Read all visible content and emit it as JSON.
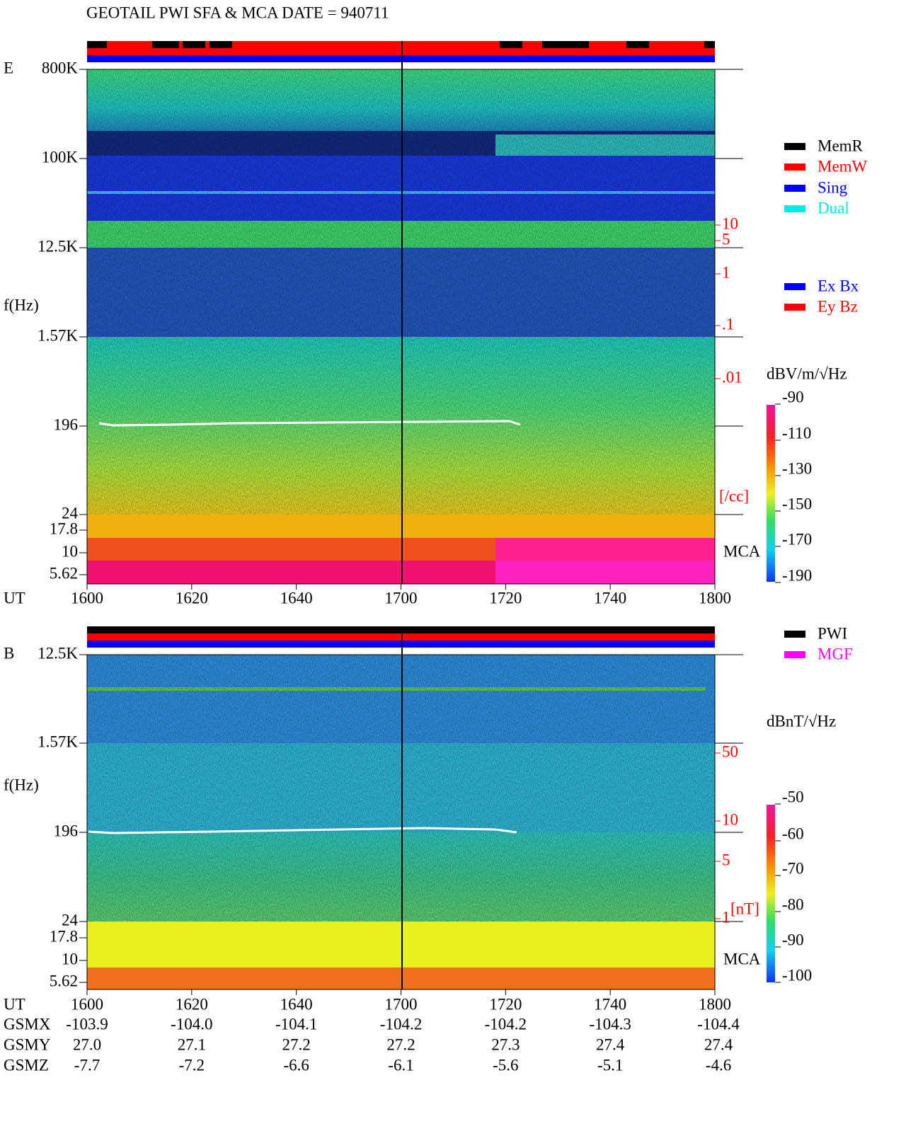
{
  "title": "GEOTAIL  PWI SFA & MCA   DATE = 940711",
  "panels": [
    {
      "label": "E",
      "y_axis_label": "f(Hz)",
      "x_axis_label": "UT",
      "band_label": "MCA",
      "y_ticks": [
        "800K",
        "100K",
        "12.5K",
        "1.57K",
        "196",
        "24",
        "17.8",
        "10",
        "5.62"
      ],
      "x_ticks": [
        "1600",
        "1620",
        "1640",
        "1700",
        "1720",
        "1740",
        "1800"
      ],
      "right_scale": {
        "ticks": [
          "10",
          "5",
          "1",
          ".1",
          ".01"
        ],
        "unit": "[/cc]"
      },
      "colorbar": {
        "unit": "dBV/m/√Hz",
        "ticks": [
          "-90",
          "-110",
          "-130",
          "-150",
          "-170",
          "-190"
        ]
      },
      "legend": [
        {
          "name": "MemR",
          "color": "#000000"
        },
        {
          "name": "MemW",
          "color": "#ff0000"
        },
        {
          "name": "Sing",
          "color": "#0000ff"
        },
        {
          "name": "Dual",
          "color": "#00e8f0"
        },
        {
          "name": "Ex Bx",
          "color": "#0000ff"
        },
        {
          "name": "Ey Bz",
          "color": "#ff0000"
        }
      ]
    },
    {
      "label": "B",
      "y_axis_label": "f(Hz)",
      "x_axis_label": "UT",
      "band_label": "MCA",
      "y_ticks": [
        "12.5K",
        "1.57K",
        "196",
        "24",
        "17.8",
        "10",
        "5.62"
      ],
      "x_ticks": [
        "1600",
        "1620",
        "1640",
        "1700",
        "1720",
        "1740",
        "1800"
      ],
      "right_scale": {
        "ticks": [
          "50",
          "10",
          "5",
          "1"
        ],
        "unit": "[nT]"
      },
      "colorbar": {
        "unit": "dBnT/√Hz",
        "ticks": [
          "-50",
          "-60",
          "-70",
          "-80",
          "-90",
          "-100"
        ]
      },
      "legend": [
        {
          "name": "PWI",
          "color": "#000000"
        },
        {
          "name": "MGF",
          "color": "#ff00ff"
        }
      ]
    }
  ],
  "ephemeris": [
    {
      "label": "GSMX",
      "values": [
        "-103.9",
        "-104.0",
        "-104.1",
        "-104.2",
        "-104.2",
        "-104.3",
        "-104.4"
      ]
    },
    {
      "label": "GSMY",
      "values": [
        "27.0",
        "27.1",
        "27.2",
        "27.2",
        "27.3",
        "27.4",
        "27.4"
      ]
    },
    {
      "label": "GSMZ",
      "values": [
        "-7.7",
        "-7.2",
        "-6.6",
        "-6.1",
        "-5.6",
        "-5.1",
        "-4.6"
      ]
    }
  ]
}
